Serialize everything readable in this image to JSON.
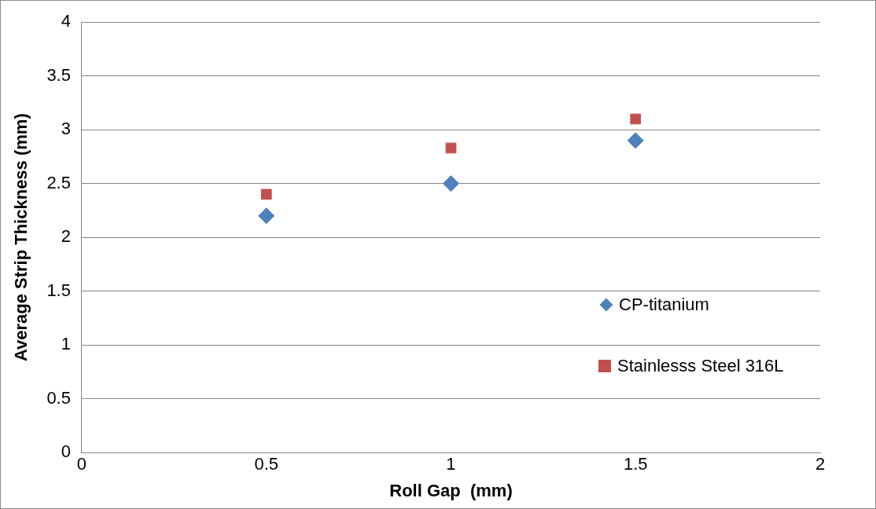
{
  "chart_data": {
    "type": "scatter",
    "xlabel": "Roll Gap  (mm)",
    "ylabel": "Average Strip Thickness (mm)",
    "x": [
      0.5,
      1,
      1.5
    ],
    "series": [
      {
        "name": "CP-titanium",
        "color": "#4f81bd",
        "marker": "diamond",
        "values": [
          2.2,
          2.5,
          2.9
        ]
      },
      {
        "name": "Stainlesss Steel 316L",
        "color": "#c0504d",
        "marker": "square",
        "values": [
          2.4,
          2.83,
          3.1
        ]
      }
    ],
    "xlim": [
      0,
      2
    ],
    "xticks": [
      0,
      0.5,
      1,
      1.5,
      2
    ],
    "ylim": [
      0,
      4
    ],
    "yticks": [
      0,
      0.5,
      1,
      1.5,
      2,
      2.5,
      3,
      3.5,
      4
    ],
    "grid": "y",
    "legend": "right"
  }
}
